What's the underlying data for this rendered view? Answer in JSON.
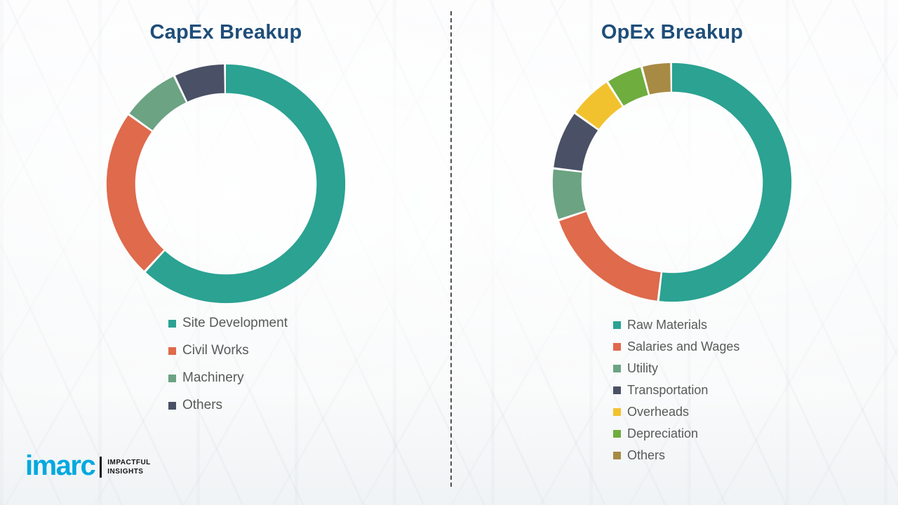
{
  "chart_data": [
    {
      "type": "pie",
      "subtype": "donut",
      "title": "CapEx Breakup",
      "labels": [
        "Site Development",
        "Civil Works",
        "Machinery",
        "Others"
      ],
      "values": [
        62,
        23,
        8,
        7
      ],
      "colors": [
        "#2BA292",
        "#DF6A4C",
        "#6BA383",
        "#4A5166"
      ],
      "hole_ratio": 0.76,
      "start_angle_deg": 0,
      "direction": "clockwise",
      "legend_position": "below-left",
      "title_color": "#1F4E79",
      "legend_text_color": "#595959"
    },
    {
      "type": "pie",
      "subtype": "donut",
      "title": "OpEx Breakup",
      "labels": [
        "Raw Materials",
        "Salaries and Wages",
        "Utility",
        "Transportation",
        "Overheads",
        "Depreciation",
        "Others"
      ],
      "values": [
        52,
        18,
        7,
        8,
        6,
        5,
        4
      ],
      "colors": [
        "#2BA292",
        "#DF6A4C",
        "#6BA383",
        "#4A5166",
        "#F2C22E",
        "#6FAD3F",
        "#A78B44"
      ],
      "hole_ratio": 0.76,
      "start_angle_deg": 0,
      "direction": "clockwise",
      "legend_position": "below-left",
      "title_color": "#1F4E79",
      "legend_text_color": "#595959"
    }
  ],
  "logo": {
    "brand": "imarc",
    "tagline_line1": "IMPACTFUL",
    "tagline_line2": "INSIGHTS",
    "brand_color": "#00A9E0"
  }
}
